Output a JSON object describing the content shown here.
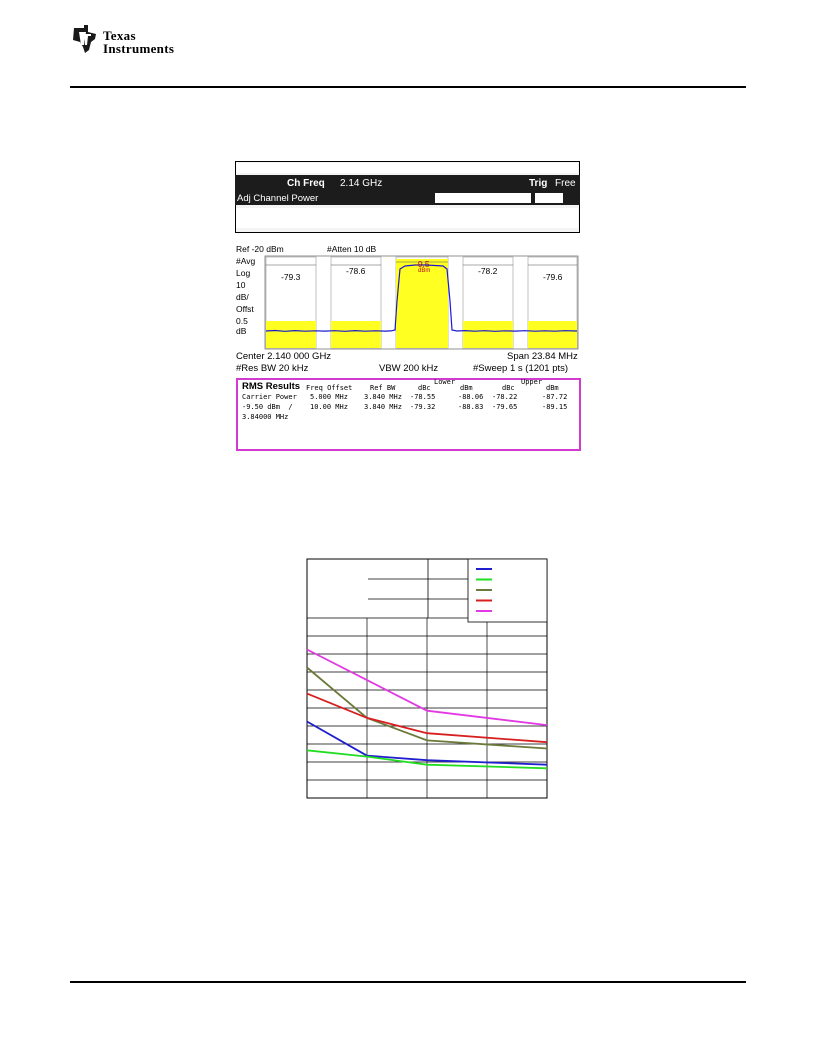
{
  "header": {
    "company_line1": "Texas",
    "company_line2": "Instruments"
  },
  "analyzer": {
    "ch_freq_label": "Ch Freq",
    "ch_freq_value": "2.14 GHz",
    "trig_label": "Trig",
    "trig_value": "Free",
    "mode": "Adj Channel Power",
    "ref": "Ref -20 dBm",
    "atten": "#Atten 10 dB",
    "scale_labels": [
      "#Avg",
      "Log",
      "10",
      "dB/",
      "Offst",
      "0.5",
      "dB"
    ],
    "channel_readouts": [
      "-79.3",
      "-78.6",
      "-9.5",
      "-78.2",
      "-79.6"
    ],
    "carrier_unit": "dBm",
    "center": "Center 2.140 000 GHz",
    "span": "Span 23.84 MHz",
    "res_bw": "#Res BW 20 kHz",
    "vbw": "VBW 200 kHz",
    "sweep": "#Sweep 1 s (1201 pts)",
    "rms": {
      "title": "RMS Results",
      "carrier_power": "Carrier Power",
      "carrier_value": "-9.50 dBm  /",
      "carrier_bw": "3.84000 MHz",
      "col_freq_offset": "Freq Offset",
      "col_ref_bw": "Ref BW",
      "col_dbc": "dBc",
      "col_lower": "Lower",
      "col_dbm": "dBm",
      "col_upper": "Upper",
      "rows": [
        {
          "offset": "5.000 MHz",
          "ref_bw": "3.840 MHz",
          "lower_dbc": "-78.55",
          "lower_dbm": "-88.06",
          "upper_dbc": "-78.22",
          "upper_dbm": "-87.72"
        },
        {
          "offset": "10.00 MHz",
          "ref_bw": "3.840 MHz",
          "lower_dbc": "-79.32",
          "lower_dbm": "-88.83",
          "upper_dbc": "-79.65",
          "upper_dbm": "-89.15"
        }
      ]
    }
  },
  "chart_data": {
    "type": "line",
    "title": "",
    "xlabel": "",
    "ylabel": "",
    "grid": true,
    "legend_placement": "top-right",
    "x": [
      0,
      1,
      2,
      3
    ],
    "xlim": [
      0,
      4
    ],
    "ylim": [
      0,
      10
    ],
    "series": [
      {
        "color": "#1f1fcf",
        "values": [
          4.25,
          2.35,
          2.1,
          1.85
        ]
      },
      {
        "color": "#22dd22",
        "values": [
          2.65,
          2.3,
          1.85,
          1.65
        ]
      },
      {
        "color": "#6b7a3a",
        "values": [
          7.25,
          4.45,
          3.2,
          2.75
        ]
      },
      {
        "color": "#d81f1f",
        "values": [
          5.8,
          4.45,
          3.6,
          3.1
        ]
      },
      {
        "color": "#e23ae2",
        "values": [
          8.25,
          6.55,
          4.85,
          4.05
        ]
      }
    ]
  }
}
